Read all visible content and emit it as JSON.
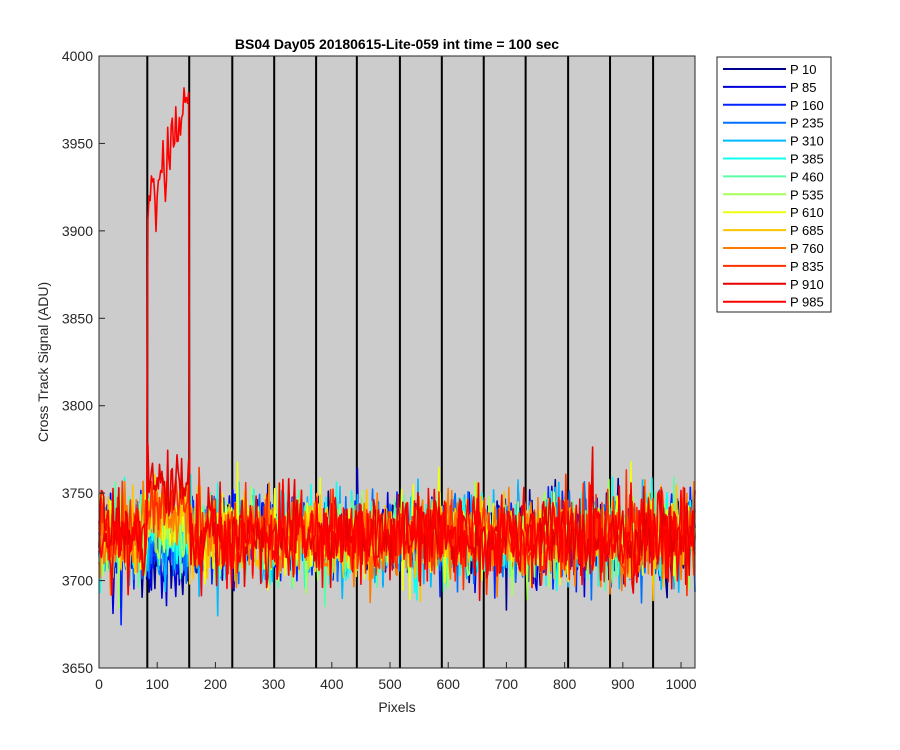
{
  "chart_data": {
    "type": "line",
    "title": "BS04 Day05 20180615-Lite-059 int time = 100 sec",
    "xlabel": "Pixels",
    "ylabel": "Cross Track Signal (ADU)",
    "xlim": [
      0,
      1024
    ],
    "ylim": [
      3650,
      4000
    ],
    "xticks": [
      0,
      100,
      200,
      300,
      400,
      500,
      600,
      700,
      800,
      900,
      1000
    ],
    "yticks": [
      3650,
      3700,
      3750,
      3800,
      3850,
      3900,
      3950,
      4000
    ],
    "plot_background": "#cccccc",
    "vertical_lines": [
      83,
      155,
      229,
      301,
      373,
      443,
      517,
      589,
      661,
      733,
      806,
      878,
      952
    ],
    "legend_position": "outside-right-top",
    "noise_model": {
      "baseline_mean": 3725,
      "baseline_sigma": 12,
      "segment_a": [
        83,
        155
      ],
      "segment_b": [
        0,
        83
      ]
    },
    "series": [
      {
        "name": "P 10",
        "color": "#00008f",
        "segment_a_mean": 3712,
        "segment_b_mean": 3722
      },
      {
        "name": "P 85",
        "color": "#0000d9",
        "segment_a_mean": 3712,
        "segment_b_mean": 3722
      },
      {
        "name": "P 160",
        "color": "#0026ff",
        "segment_a_mean": 3716,
        "segment_b_mean": 3723
      },
      {
        "name": "P 235",
        "color": "#0070ff",
        "segment_a_mean": 3718,
        "segment_b_mean": 3723
      },
      {
        "name": "P 310",
        "color": "#00baff",
        "segment_a_mean": 3722,
        "segment_b_mean": 3724
      },
      {
        "name": "P 385",
        "color": "#10ffef",
        "segment_a_mean": 3724,
        "segment_b_mean": 3724
      },
      {
        "name": "P 460",
        "color": "#5affa5",
        "segment_a_mean": 3727,
        "segment_b_mean": 3725
      },
      {
        "name": "P 535",
        "color": "#a5ff5a",
        "segment_a_mean": 3730,
        "segment_b_mean": 3725
      },
      {
        "name": "P 610",
        "color": "#efff10",
        "segment_a_mean": 3734,
        "segment_b_mean": 3726
      },
      {
        "name": "P 685",
        "color": "#ffc400",
        "segment_a_mean": 3737,
        "segment_b_mean": 3726
      },
      {
        "name": "P 760",
        "color": "#ff7a00",
        "segment_a_mean": 3740,
        "segment_b_mean": 3727
      },
      {
        "name": "P 835",
        "color": "#ff3000",
        "segment_a_mean": 3744,
        "segment_b_mean": 3727
      },
      {
        "name": "P 910",
        "color": "#e60000",
        "segment_a_mean": 3755,
        "segment_b_mean": 3728
      },
      {
        "name": "P 985",
        "color": "#ff0000",
        "segment_a_mean": 3935,
        "segment_b_mean": 3725,
        "segment_a_ramp": [
          3915,
          3970
        ]
      }
    ]
  }
}
